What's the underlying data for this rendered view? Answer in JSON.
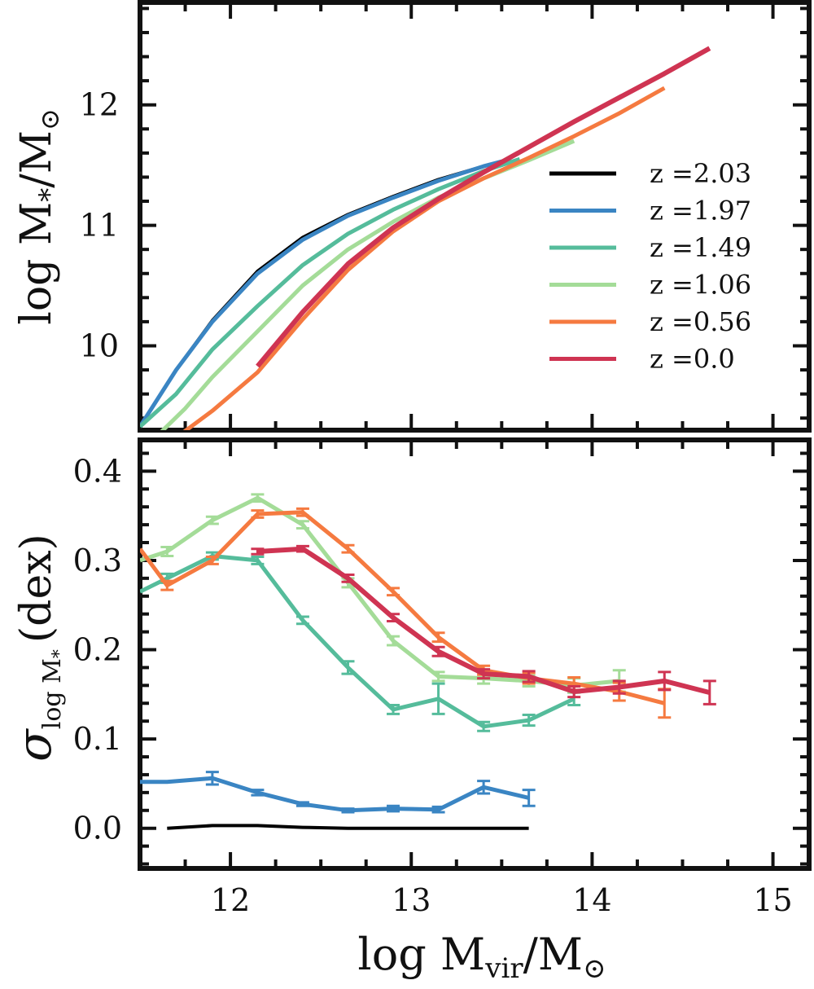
{
  "chart_data": [
    {
      "type": "line",
      "panel": "top",
      "ylabel": "log M*/M⊙",
      "ylabel_main": "log M",
      "ylabel_sub": "*",
      "ylabel_rest": "/M",
      "ylabel_sym": "⊙",
      "xlim": [
        11.5,
        15.2
      ],
      "ylim": [
        9.3,
        12.85
      ],
      "yticks": [
        10,
        11,
        12
      ],
      "ytick_labels": [
        "10",
        "11",
        "12"
      ],
      "legend_position": "right",
      "series": [
        {
          "name": "z =2.03",
          "color": "#000000",
          "width": 4,
          "x": [
            11.5,
            11.7,
            11.9,
            12.15,
            12.4,
            12.65,
            12.9,
            13.15,
            13.4,
            13.5
          ],
          "y": [
            9.33,
            9.8,
            10.21,
            10.62,
            10.9,
            11.09,
            11.24,
            11.38,
            11.49,
            11.53
          ]
        },
        {
          "name": "z =1.97",
          "color": "#3a85c3",
          "width": 5,
          "x": [
            11.5,
            11.7,
            11.9,
            12.15,
            12.4,
            12.65,
            12.9,
            13.15,
            13.4,
            13.55
          ],
          "y": [
            9.33,
            9.8,
            10.2,
            10.6,
            10.88,
            11.08,
            11.23,
            11.37,
            11.49,
            11.55
          ]
        },
        {
          "name": "z =1.49",
          "color": "#55bc9b",
          "width": 5,
          "x": [
            11.5,
            11.7,
            11.9,
            12.15,
            12.4,
            12.65,
            12.9,
            13.15,
            13.4,
            13.6
          ],
          "y": [
            9.33,
            9.6,
            9.97,
            10.33,
            10.67,
            10.93,
            11.13,
            11.3,
            11.45,
            11.55
          ]
        },
        {
          "name": "z =1.06",
          "color": "#a4dc98",
          "width": 5,
          "x": [
            11.6,
            11.75,
            11.9,
            12.15,
            12.4,
            12.65,
            12.9,
            13.15,
            13.4,
            13.65,
            13.9
          ],
          "y": [
            9.26,
            9.48,
            9.74,
            10.12,
            10.5,
            10.8,
            11.03,
            11.23,
            11.39,
            11.54,
            11.7
          ]
        },
        {
          "name": "z =0.56",
          "color": "#f57a40",
          "width": 5,
          "x": [
            11.72,
            11.9,
            12.15,
            12.4,
            12.65,
            12.9,
            13.15,
            13.4,
            13.65,
            13.9,
            14.15,
            14.4
          ],
          "y": [
            9.26,
            9.46,
            9.78,
            10.22,
            10.63,
            10.95,
            11.2,
            11.39,
            11.56,
            11.74,
            11.93,
            12.14
          ]
        },
        {
          "name": "z =0.0",
          "color": "#cf3452",
          "width": 6,
          "x": [
            12.15,
            12.4,
            12.65,
            12.9,
            13.15,
            13.4,
            13.65,
            13.9,
            14.15,
            14.4,
            14.65
          ],
          "y": [
            9.83,
            10.28,
            10.68,
            10.98,
            11.22,
            11.44,
            11.65,
            11.86,
            12.06,
            12.26,
            12.47
          ]
        }
      ]
    },
    {
      "type": "line",
      "panel": "bottom",
      "xlabel": "log Mvir/M⊙",
      "xlabel_main": "log M",
      "xlabel_sub": "vir",
      "xlabel_rest": "/M",
      "xlabel_sym": "⊙",
      "ylabel": "σ log M* (dex)",
      "ylabel_sigma": "σ",
      "ylabel_sub": "log M",
      "ylabel_subsub": "*",
      "ylabel_rest": "(dex)",
      "xlim": [
        11.5,
        15.2
      ],
      "ylim": [
        -0.045,
        0.435
      ],
      "xticks": [
        12,
        13,
        14,
        15
      ],
      "xtick_labels": [
        "12",
        "13",
        "14",
        "15"
      ],
      "yticks": [
        0.0,
        0.1,
        0.2,
        0.3,
        0.4
      ],
      "ytick_labels": [
        "0.0",
        "0.1",
        "0.2",
        "0.3",
        "0.4"
      ],
      "series": [
        {
          "name": "z =2.03",
          "color": "#000000",
          "width": 4,
          "x": [
            11.65,
            11.9,
            12.15,
            12.4,
            12.65,
            12.9,
            13.15,
            13.4,
            13.65
          ],
          "y": [
            0.0,
            0.003,
            0.003,
            0.001,
            0.0,
            0.0,
            0.0,
            0.0,
            0.0
          ],
          "err": [
            0,
            0,
            0,
            0,
            0,
            0,
            0,
            0,
            0
          ]
        },
        {
          "name": "z =1.97",
          "color": "#3a85c3",
          "width": 5,
          "x": [
            11.5,
            11.65,
            11.9,
            12.15,
            12.4,
            12.65,
            12.9,
            13.15,
            13.4,
            13.65
          ],
          "y": [
            0.052,
            0.052,
            0.056,
            0.04,
            0.027,
            0.02,
            0.022,
            0.021,
            0.046,
            0.034
          ],
          "err": [
            0.0,
            0.0,
            0.007,
            0.003,
            0.002,
            0.002,
            0.003,
            0.003,
            0.007,
            0.009
          ]
        },
        {
          "name": "z =1.49",
          "color": "#55bc9b",
          "width": 5,
          "x": [
            11.5,
            11.65,
            11.9,
            12.15,
            12.4,
            12.65,
            12.9,
            13.15,
            13.4,
            13.65,
            13.9
          ],
          "y": [
            0.265,
            0.28,
            0.305,
            0.3,
            0.233,
            0.18,
            0.133,
            0.145,
            0.114,
            0.121,
            0.145
          ],
          "err": [
            0.0,
            0.005,
            0.004,
            0.004,
            0.004,
            0.007,
            0.005,
            0.017,
            0.005,
            0.006,
            0.007
          ]
        },
        {
          "name": "z =1.06",
          "color": "#a4dc98",
          "width": 5,
          "x": [
            11.5,
            11.65,
            11.9,
            12.15,
            12.4,
            12.65,
            12.9,
            13.15,
            13.4,
            13.65,
            13.9,
            14.15
          ],
          "y": [
            0.3,
            0.31,
            0.345,
            0.37,
            0.34,
            0.275,
            0.21,
            0.17,
            0.168,
            0.165,
            0.16,
            0.165
          ],
          "err": [
            0.0,
            0.005,
            0.004,
            0.004,
            0.004,
            0.005,
            0.005,
            0.005,
            0.006,
            0.006,
            0.008,
            0.012
          ]
        },
        {
          "name": "z =0.56",
          "color": "#f57a40",
          "width": 5,
          "x": [
            11.5,
            11.65,
            11.9,
            12.15,
            12.4,
            12.65,
            12.9,
            13.15,
            13.4,
            13.65,
            13.9,
            14.15,
            14.4
          ],
          "y": [
            0.313,
            0.272,
            0.3,
            0.352,
            0.354,
            0.313,
            0.265,
            0.214,
            0.177,
            0.168,
            0.162,
            0.153,
            0.14
          ],
          "err": [
            0.0,
            0.005,
            0.004,
            0.004,
            0.004,
            0.004,
            0.004,
            0.005,
            0.005,
            0.006,
            0.007,
            0.01,
            0.016
          ]
        },
        {
          "name": "z =0.0",
          "color": "#cf3452",
          "width": 6,
          "x": [
            12.15,
            12.4,
            12.65,
            12.9,
            13.15,
            13.4,
            13.65,
            13.9,
            14.15,
            14.4,
            14.65
          ],
          "y": [
            0.31,
            0.313,
            0.28,
            0.236,
            0.198,
            0.173,
            0.17,
            0.153,
            0.158,
            0.165,
            0.152
          ],
          "err": [
            0.003,
            0.003,
            0.004,
            0.004,
            0.005,
            0.005,
            0.006,
            0.006,
            0.007,
            0.01,
            0.013
          ]
        }
      ]
    }
  ]
}
